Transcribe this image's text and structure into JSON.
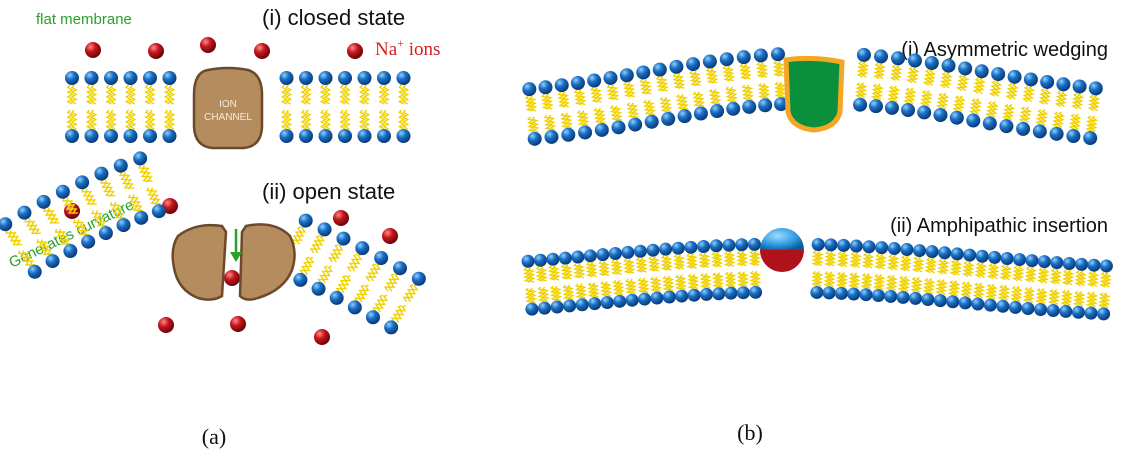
{
  "panel_a": {
    "caption": "(a)",
    "flat_membrane_label": "flat membrane",
    "closed_state_title": "(i) closed state",
    "ion_label_prefix": "Na",
    "ion_label_sup": "+",
    "ion_label_suffix": " ions",
    "channel_label_line1": "ION",
    "channel_label_line2": "CHANNEL",
    "open_state_title": "(ii) open state",
    "curvature_label": "Generates curvature"
  },
  "panel_b": {
    "caption": "(b)",
    "wedging_title": "(i) Asymmetric wedging",
    "amphipathic_title": "(ii) Amphipathic insertion"
  },
  "colors": {
    "lipid_head": "#1a6fc4",
    "lipid_tail": "#f0d200",
    "ion": "#c4161c",
    "channel": "#b58c5e",
    "wedge_fill": "#0b8f3c",
    "wedge_border": "#f5a623",
    "amphipathic_top": "#2f9ae0",
    "amphipathic_bottom": "#b0121b",
    "green_text": "#2aa12a",
    "red_text": "#d42020"
  }
}
